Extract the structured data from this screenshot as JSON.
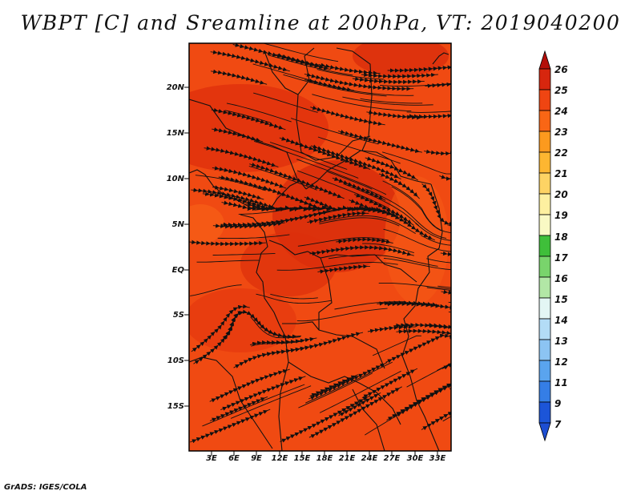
{
  "title": "WBPT [C] and Sreamline at 200hPa, VT: 2019040200",
  "credit": "GrADS: IGES/COLA",
  "map": {
    "lat_labels": [
      "20N",
      "15N",
      "10N",
      "5N",
      "EQ",
      "5S",
      "10S",
      "15S"
    ],
    "lon_labels": [
      "3E",
      "6E",
      "9E",
      "12E",
      "15E",
      "18E",
      "21E",
      "24E",
      "27E",
      "30E",
      "33E"
    ],
    "fill_colors": {
      "base": "#f04a12",
      "warm": "#e02e0c",
      "hot": "#d12a0a",
      "cool": "#f86418"
    }
  },
  "colorbar": {
    "labels": [
      "26",
      "25",
      "24",
      "23",
      "22",
      "21",
      "20",
      "19",
      "18",
      "17",
      "16",
      "15",
      "14",
      "13",
      "12",
      "11",
      "9",
      "7"
    ],
    "colors": [
      "#b40f0a",
      "#d7260e",
      "#ef4512",
      "#f96615",
      "#fc9a1e",
      "#fdb631",
      "#fdd364",
      "#fdf0a0",
      "#f9f9c4",
      "#3fbf3a",
      "#79d46c",
      "#b2e7a6",
      "#e3f6f4",
      "#b3dcf6",
      "#8cc4f3",
      "#5aa4ee",
      "#357ee6",
      "#1c55d8",
      "#1d4ed2"
    ]
  }
}
